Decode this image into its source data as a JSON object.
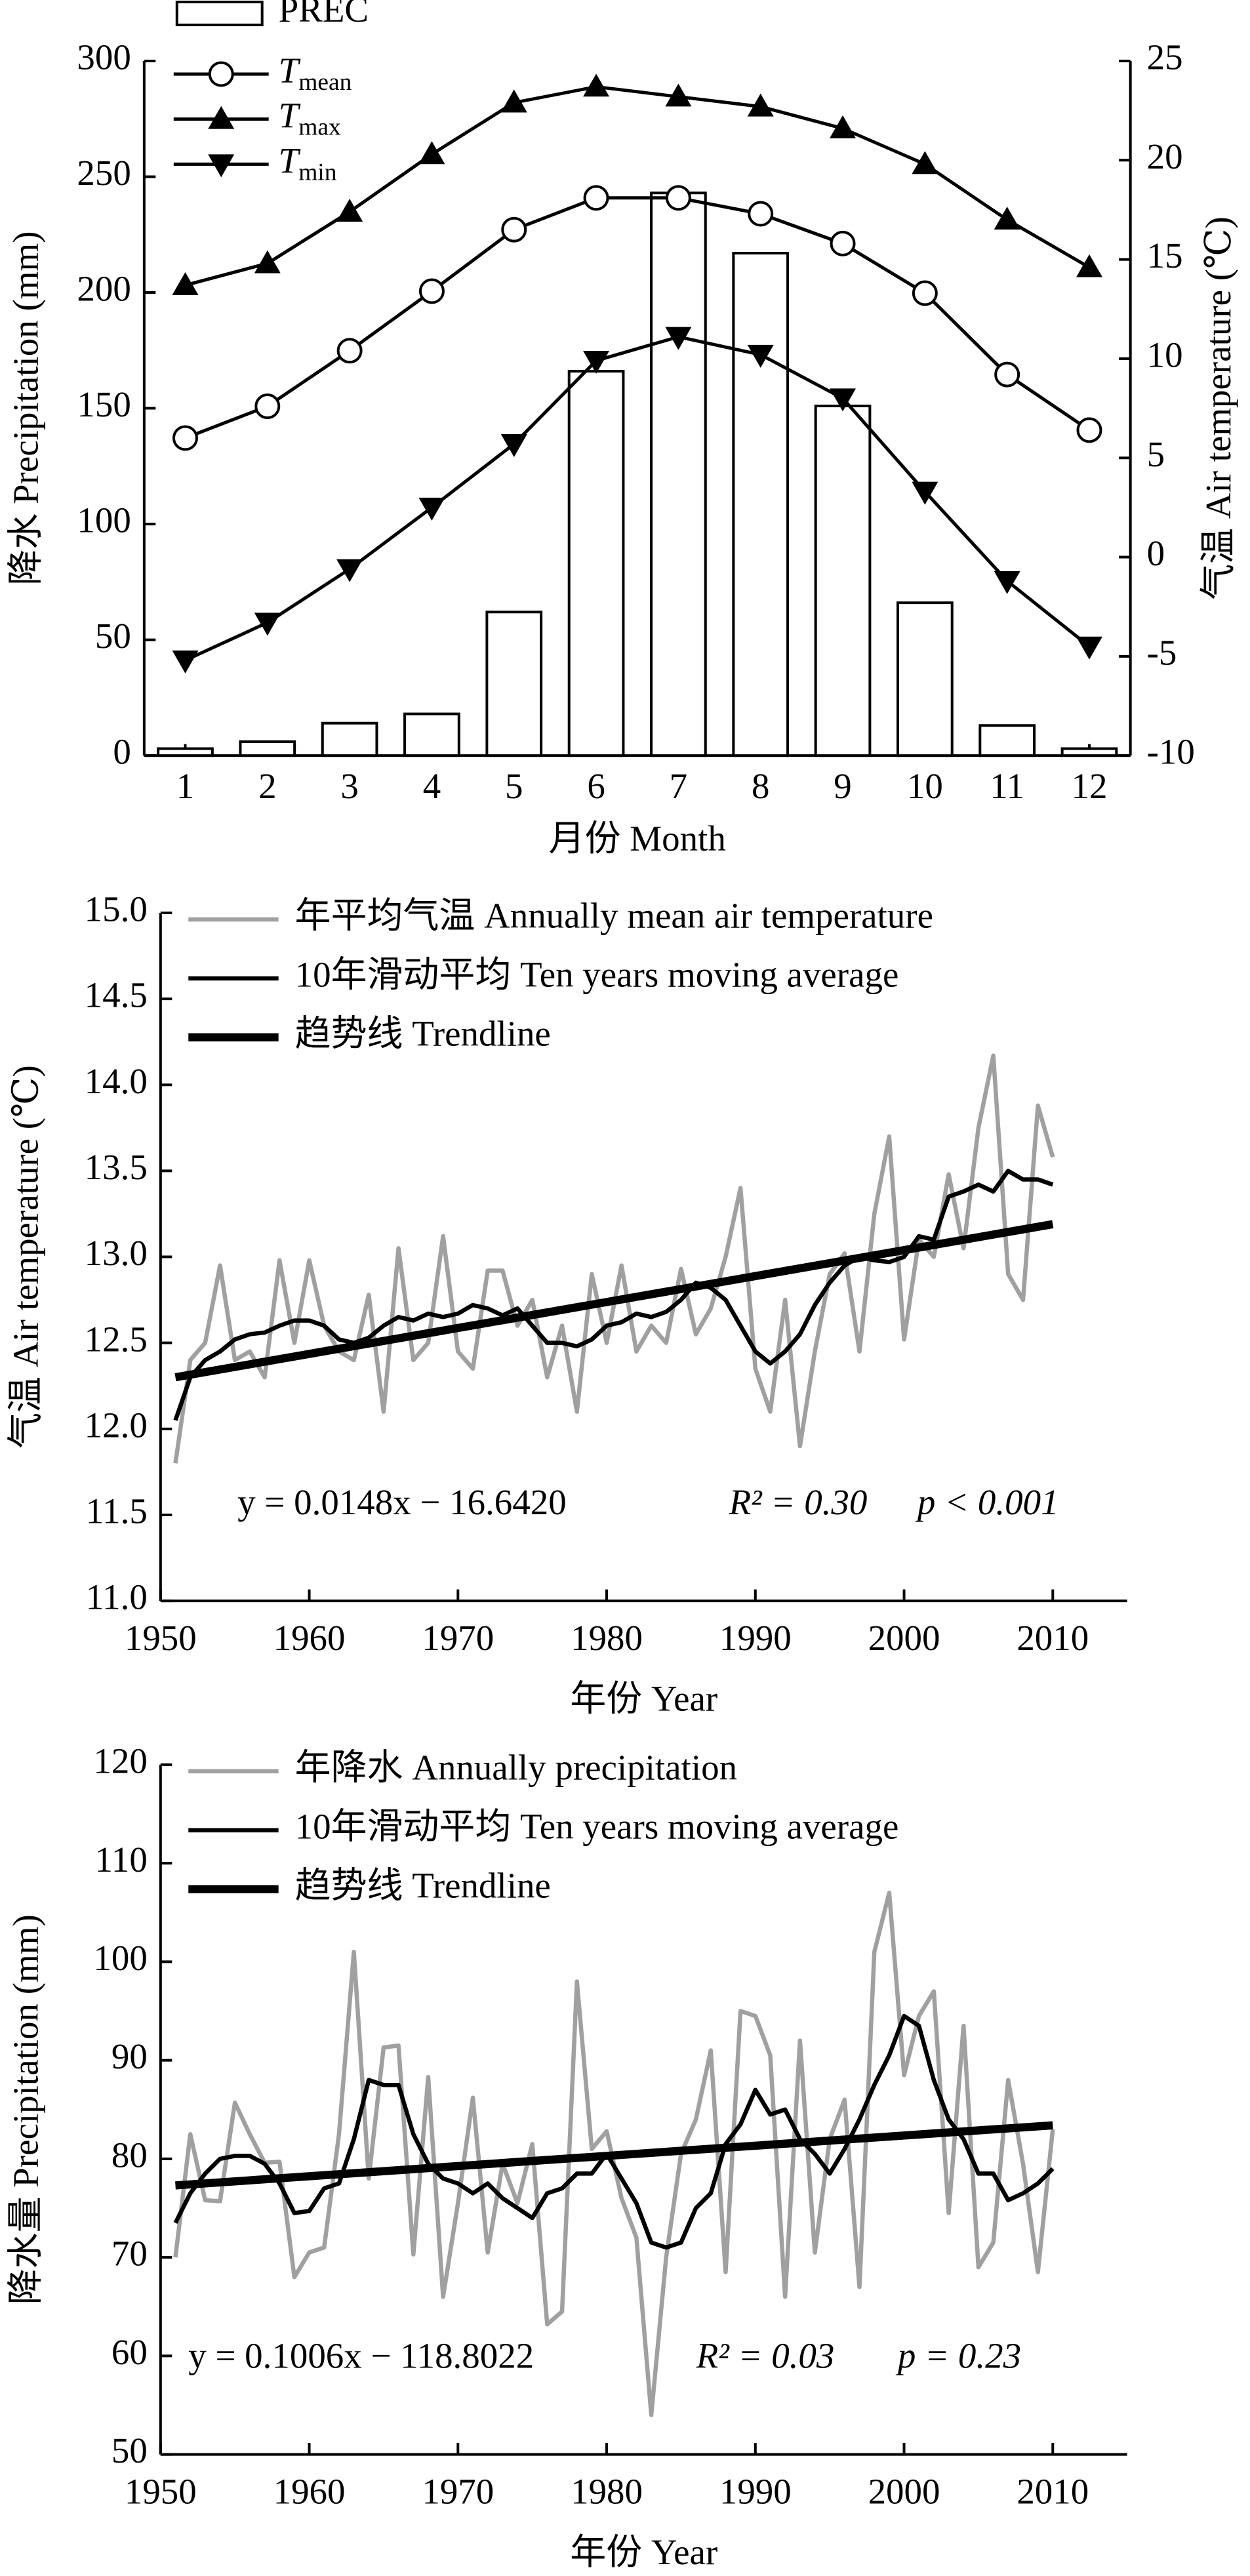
{
  "chart_data": [
    {
      "type": "combo",
      "categories": [
        "1",
        "2",
        "3",
        "4",
        "5",
        "6",
        "7",
        "8",
        "9",
        "10",
        "11",
        "12"
      ],
      "ylim": [
        0,
        300
      ],
      "yticks": [
        0,
        50,
        100,
        150,
        200,
        250,
        300
      ],
      "y2lim": [
        -10,
        25
      ],
      "y2ticks": [
        -10,
        -5,
        0,
        5,
        10,
        15,
        20,
        25
      ],
      "ylabel": "降水 Precipitation (mm)",
      "y2label": "气温 Air temperature (℃)",
      "xlabel": "月份 Month",
      "series": [
        {
          "name": "PREC",
          "kind": "bar",
          "color": "#000000",
          "fill": "#ffffff",
          "values": [
            3,
            6,
            14,
            18,
            62,
            166,
            243,
            217,
            151,
            66,
            13,
            3
          ]
        },
        {
          "name": "Tmean",
          "subscript": true,
          "kind": "line",
          "marker": "circle",
          "color": "#000000",
          "axis": "y2",
          "values": [
            6.0,
            7.6,
            10.4,
            13.4,
            16.5,
            18.1,
            18.1,
            17.3,
            15.8,
            13.3,
            9.2,
            6.4
          ]
        },
        {
          "name": "Tmax",
          "subscript": true,
          "kind": "line",
          "marker": "triangle-up",
          "color": "#000000",
          "axis": "y2",
          "values": [
            13.7,
            14.8,
            17.4,
            20.3,
            22.9,
            23.7,
            23.2,
            22.7,
            21.6,
            19.8,
            17.0,
            14.6
          ]
        },
        {
          "name": "Tmin",
          "subscript": true,
          "kind": "line",
          "marker": "triangle-down",
          "color": "#000000",
          "axis": "y2",
          "values": [
            -5.2,
            -3.3,
            -0.6,
            2.5,
            5.7,
            9.9,
            11.1,
            10.2,
            8.0,
            3.3,
            -1.2,
            -4.5
          ]
        }
      ]
    },
    {
      "type": "line",
      "x": [
        1951,
        1952,
        1953,
        1954,
        1955,
        1956,
        1957,
        1958,
        1959,
        1960,
        1961,
        1962,
        1963,
        1964,
        1965,
        1966,
        1967,
        1968,
        1969,
        1970,
        1971,
        1972,
        1973,
        1974,
        1975,
        1976,
        1977,
        1978,
        1979,
        1980,
        1981,
        1982,
        1983,
        1984,
        1985,
        1986,
        1987,
        1988,
        1989,
        1990,
        1991,
        1992,
        1993,
        1994,
        1995,
        1996,
        1997,
        1998,
        1999,
        2000,
        2001,
        2002,
        2003,
        2004,
        2005,
        2006,
        2007,
        2008,
        2009,
        2010
      ],
      "xlim": [
        1950,
        2015
      ],
      "xticks": [
        1950,
        1960,
        1970,
        1980,
        1990,
        2000,
        2010
      ],
      "ylim": [
        11,
        15
      ],
      "yticks": [
        {
          "value": 11,
          "label": "11.0"
        },
        11.5,
        {
          "value": 12,
          "label": "12.0"
        },
        12.5,
        {
          "value": 13,
          "label": "13.0"
        },
        13.5,
        {
          "value": 14,
          "label": "14.0"
        },
        14.5,
        {
          "value": 15,
          "label": "15.0"
        }
      ],
      "ylabel": "气温 Air temperature (℃)",
      "xlabel": "年份 Year",
      "annotations": [
        "y = 0.0148x − 16.6420",
        "R² = 0.30",
        "p < 0.001"
      ],
      "series": [
        {
          "name": "年平均气温 Annually mean air temperature",
          "color": "#a0a0a0",
          "line_width": 2.6,
          "values": [
            11.8,
            12.4,
            12.5,
            12.95,
            12.4,
            12.45,
            12.3,
            12.98,
            12.5,
            12.98,
            12.6,
            12.45,
            12.4,
            12.78,
            12.1,
            13.05,
            12.4,
            12.5,
            13.12,
            12.45,
            12.35,
            12.92,
            12.92,
            12.6,
            12.75,
            12.3,
            12.6,
            12.1,
            12.9,
            12.5,
            12.95,
            12.45,
            12.6,
            12.5,
            12.93,
            12.55,
            12.7,
            13.0,
            13.4,
            12.35,
            12.1,
            12.75,
            11.9,
            12.45,
            12.9,
            13.02,
            12.45,
            13.25,
            13.7,
            12.52,
            13.1,
            13.0,
            13.48,
            13.05,
            13.75,
            14.17,
            12.9,
            12.75,
            13.88,
            13.58
          ]
        },
        {
          "name": "10年滑动平均 Ten years moving average",
          "color": "#000000",
          "line_width": 2.6,
          "values": [
            12.05,
            12.3,
            12.4,
            12.45,
            12.52,
            12.55,
            12.56,
            12.6,
            12.63,
            12.63,
            12.6,
            12.52,
            12.5,
            12.53,
            12.6,
            12.65,
            12.63,
            12.67,
            12.65,
            12.67,
            12.72,
            12.7,
            12.66,
            12.7,
            12.6,
            12.5,
            12.5,
            12.48,
            12.52,
            12.6,
            12.62,
            12.67,
            12.65,
            12.68,
            12.75,
            12.85,
            12.82,
            12.75,
            12.6,
            12.45,
            12.38,
            12.45,
            12.55,
            12.72,
            12.85,
            12.95,
            13.0,
            12.98,
            12.97,
            13.0,
            13.12,
            13.1,
            13.35,
            13.38,
            13.42,
            13.38,
            13.5,
            13.45,
            13.45,
            13.42
          ]
        },
        {
          "name": "趋势线 Trendline",
          "color": "#000000",
          "line_width": 5,
          "x": [
            1951,
            2010
          ],
          "values": [
            12.3,
            13.19
          ]
        }
      ]
    },
    {
      "type": "line",
      "x": [
        1951,
        1952,
        1953,
        1954,
        1955,
        1956,
        1957,
        1958,
        1959,
        1960,
        1961,
        1962,
        1963,
        1964,
        1965,
        1966,
        1967,
        1968,
        1969,
        1970,
        1971,
        1972,
        1973,
        1974,
        1975,
        1976,
        1977,
        1978,
        1979,
        1980,
        1981,
        1982,
        1983,
        1984,
        1985,
        1986,
        1987,
        1988,
        1989,
        1990,
        1991,
        1992,
        1993,
        1994,
        1995,
        1996,
        1997,
        1998,
        1999,
        2000,
        2001,
        2002,
        2003,
        2004,
        2005,
        2006,
        2007,
        2008,
        2009,
        2010
      ],
      "xlim": [
        1950,
        2015
      ],
      "xticks": [
        1950,
        1960,
        1970,
        1980,
        1990,
        2000,
        2010
      ],
      "ylim": [
        50,
        120
      ],
      "yticks": [
        50,
        60,
        70,
        80,
        90,
        100,
        110,
        120
      ],
      "ylabel": "降水量 Precipitation (mm)",
      "xlabel": "年份 Year",
      "annotations": [
        "y = 0.1006x − 118.8022",
        "R² = 0.03",
        "p = 0.23"
      ],
      "series": [
        {
          "name": "年降水 Annually precipitation",
          "color": "#a0a0a0",
          "line_width": 2.6,
          "values": [
            70,
            82.5,
            75.8,
            75.7,
            85.7,
            82.5,
            79.6,
            79.7,
            68,
            70.5,
            71,
            82.5,
            101,
            78,
            91.3,
            91.5,
            70.3,
            88.3,
            66,
            75.5,
            86.2,
            70.5,
            79.5,
            75.5,
            81.5,
            63.2,
            64.5,
            98,
            81,
            82.8,
            76,
            72,
            54,
            70,
            80.5,
            84,
            91,
            68.5,
            95,
            94.5,
            90.5,
            66,
            92,
            70.5,
            82,
            86,
            67,
            101,
            107,
            88.5,
            94.5,
            97,
            74.5,
            93.5,
            69,
            71.5,
            88,
            79.5,
            68.5,
            83
          ]
        },
        {
          "name": "10年滑动平均 Ten years moving average",
          "color": "#000000",
          "line_width": 2.6,
          "values": [
            73.5,
            76.5,
            78.5,
            80,
            80.3,
            80.3,
            79.5,
            77.5,
            74.5,
            74.7,
            77,
            77.5,
            82,
            88,
            87.5,
            87.5,
            82.5,
            79.5,
            78,
            77.5,
            76.5,
            77.5,
            76,
            75,
            74,
            76.5,
            77,
            78.5,
            78.5,
            80.5,
            78,
            75.5,
            71.5,
            71,
            71.5,
            75,
            76.5,
            81.5,
            83.5,
            87,
            84.5,
            85,
            82,
            80.5,
            78.5,
            81,
            84,
            87.5,
            90.5,
            94.5,
            93.5,
            88,
            84,
            82,
            78.5,
            78.5,
            75.8,
            76.5,
            77.5,
            79
          ]
        },
        {
          "name": "趋势线 Trendline",
          "color": "#000000",
          "line_width": 5,
          "x": [
            1951,
            2010
          ],
          "values": [
            77.3,
            83.4
          ]
        }
      ]
    }
  ]
}
